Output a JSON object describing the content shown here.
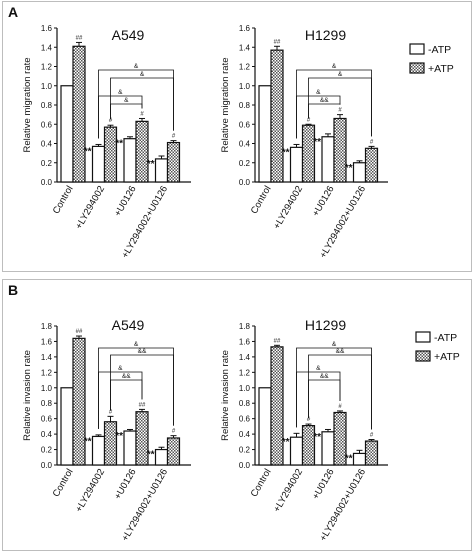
{
  "figure": {
    "panels": [
      {
        "letter": "A"
      },
      {
        "letter": "B"
      }
    ],
    "legend": {
      "items": [
        {
          "label": "-ATP",
          "fill": "white"
        },
        {
          "label": "+ATP",
          "fill": "hatched"
        }
      ]
    }
  },
  "colors": {
    "ink": "#111111",
    "hatch": "#555555",
    "minus_fill": "#ffffff",
    "panel_border": "#bdbdbd"
  },
  "chart_data": [
    {
      "type": "bar",
      "panel": "A",
      "title": "A549",
      "ylabel": "Relative migration rate",
      "xlabel": "",
      "categories": [
        "Control",
        "+LY294002",
        "+U0126",
        "+LY294002+U0126"
      ],
      "ylim": [
        0,
        1.6
      ],
      "yticks": [
        "0.0",
        "0.2",
        "0.4",
        "0.6",
        "0.8",
        "1.0",
        "1.2",
        "1.4",
        "1.6"
      ],
      "series": [
        {
          "name": "-ATP",
          "values": [
            1.0,
            0.37,
            0.45,
            0.24
          ],
          "errors": [
            0,
            0.02,
            0.02,
            0.03
          ],
          "labels": [
            "",
            "**",
            "**",
            "**"
          ]
        },
        {
          "name": "+ATP",
          "values": [
            1.41,
            0.57,
            0.63,
            0.41
          ],
          "errors": [
            0.04,
            0.02,
            0.03,
            0.02
          ],
          "labels": [
            "##",
            "#",
            "#",
            "#"
          ]
        }
      ],
      "brackets": [
        "&",
        "&",
        "&",
        "&"
      ],
      "legend": "right",
      "grid": false
    },
    {
      "type": "bar",
      "panel": "A",
      "title": "H1299",
      "ylabel": "Relative migration rate",
      "xlabel": "",
      "categories": [
        "Control",
        "+LY294002",
        "+U0126",
        "+LY294002+U0126"
      ],
      "ylim": [
        0,
        1.6
      ],
      "yticks": [
        "0.0",
        "0.2",
        "0.4",
        "0.6",
        "0.8",
        "1.0",
        "1.2",
        "1.4",
        "1.6"
      ],
      "series": [
        {
          "name": "-ATP",
          "values": [
            1.0,
            0.36,
            0.47,
            0.2
          ],
          "errors": [
            0,
            0.03,
            0.03,
            0.02
          ],
          "labels": [
            "",
            "**",
            "**",
            "**"
          ]
        },
        {
          "name": "+ATP",
          "values": [
            1.37,
            0.59,
            0.66,
            0.35
          ],
          "errors": [
            0.04,
            0.01,
            0.04,
            0.02
          ],
          "labels": [
            "##",
            "#",
            "#",
            "#"
          ]
        }
      ],
      "brackets": [
        "&",
        "&",
        "&",
        "&&"
      ],
      "legend": "right",
      "grid": false
    },
    {
      "type": "bar",
      "panel": "B",
      "title": "A549",
      "ylabel": "Relative invasion rate",
      "xlabel": "",
      "categories": [
        "Control",
        "+LY294002",
        "+U0126",
        "+LY294002+U0126"
      ],
      "ylim": [
        0,
        1.8
      ],
      "yticks": [
        "0.0",
        "0.2",
        "0.4",
        "0.6",
        "0.8",
        "1.0",
        "1.2",
        "1.4",
        "1.6",
        "1.8"
      ],
      "series": [
        {
          "name": "-ATP",
          "values": [
            1.0,
            0.37,
            0.44,
            0.2
          ],
          "errors": [
            0,
            0.02,
            0.02,
            0.03
          ],
          "labels": [
            "",
            "**",
            "**",
            "**"
          ]
        },
        {
          "name": "+ATP",
          "values": [
            1.64,
            0.56,
            0.69,
            0.35
          ],
          "errors": [
            0.03,
            0.07,
            0.03,
            0.03
          ],
          "labels": [
            "##",
            "#",
            "##",
            "#"
          ]
        }
      ],
      "brackets": [
        "&",
        "&&",
        "&",
        "&&"
      ],
      "legend": "right",
      "grid": false
    },
    {
      "type": "bar",
      "panel": "B",
      "title": "H1299",
      "ylabel": "Relative invasion rate",
      "xlabel": "",
      "categories": [
        "Control",
        "+LY294002",
        "+U0126",
        "+LY294002+U0126"
      ],
      "ylim": [
        0,
        1.8
      ],
      "yticks": [
        "0.0",
        "0.2",
        "0.4",
        "0.6",
        "0.8",
        "1.0",
        "1.2",
        "1.4",
        "1.6",
        "1.8"
      ],
      "series": [
        {
          "name": "-ATP",
          "values": [
            1.0,
            0.36,
            0.43,
            0.15
          ],
          "errors": [
            0,
            0.05,
            0.03,
            0.04
          ],
          "labels": [
            "",
            "**",
            "**",
            "**"
          ]
        },
        {
          "name": "+ATP",
          "values": [
            1.53,
            0.51,
            0.68,
            0.31
          ],
          "errors": [
            0.02,
            0.02,
            0.02,
            0.02
          ],
          "labels": [
            "##",
            "#",
            "#",
            "#"
          ]
        }
      ],
      "brackets": [
        "&",
        "&&",
        "&",
        "&&"
      ],
      "legend": "right",
      "grid": false
    }
  ]
}
